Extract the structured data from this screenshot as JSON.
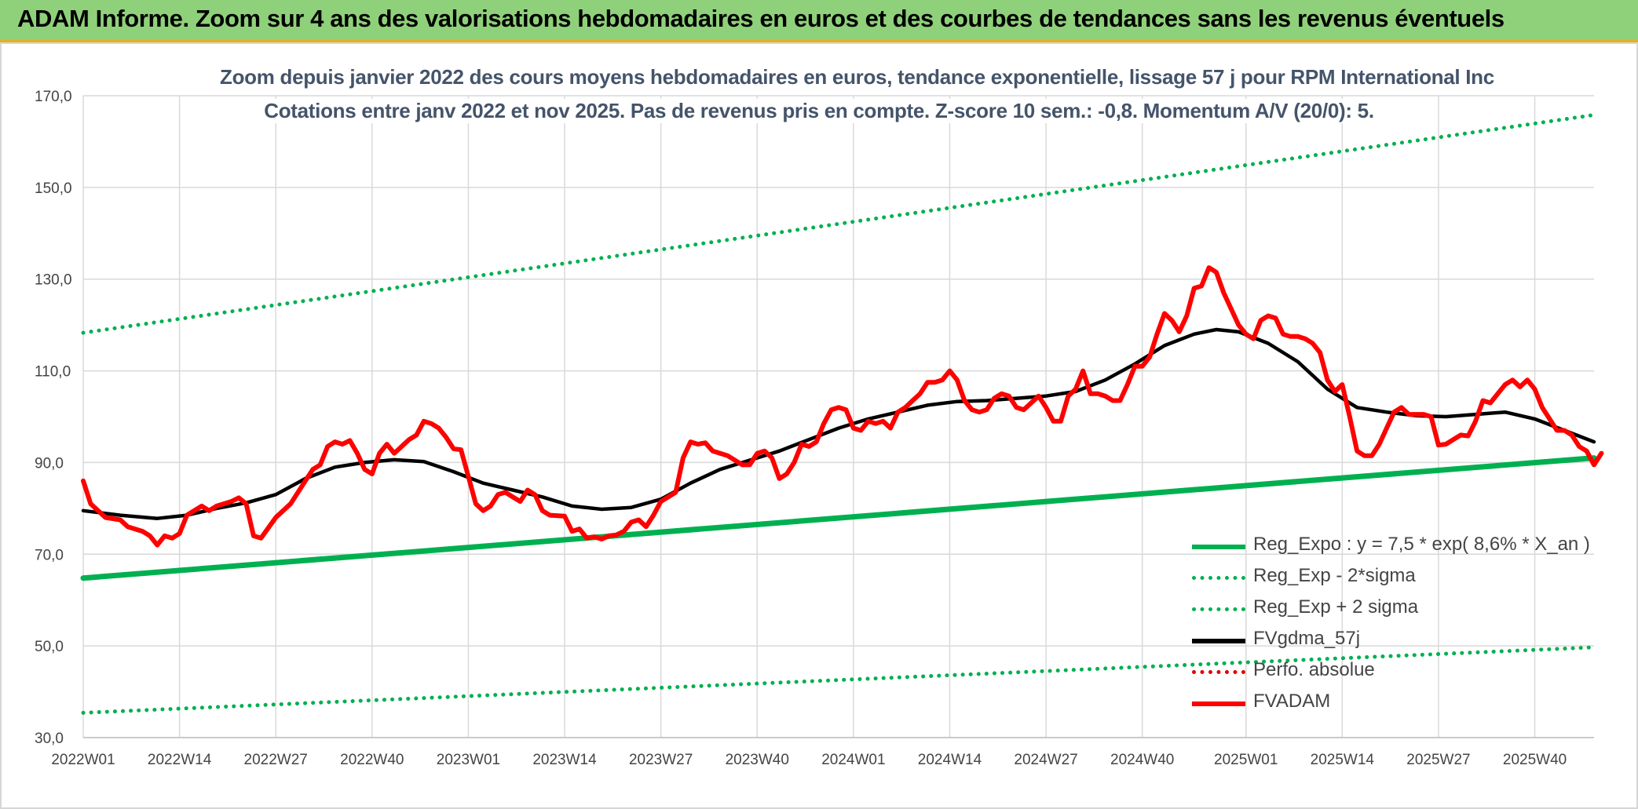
{
  "banner": {
    "title": "ADAM Informe. Zoom sur 4 ans des valorisations hebdomadaires en euros et des courbes de tendances sans les revenus éventuels"
  },
  "chart_data": {
    "type": "line",
    "title": "Zoom depuis janvier 2022 des cours moyens hebdomadaires en euros, tendance exponentielle, lissage 57 j pour RPM International Inc",
    "subtitle": "Cotations entre janv 2022 et nov 2025. Pas de revenus pris en compte. Z-score 10 sem.: -0,8. Momentum A/V (20/0): 5.",
    "xlabel": "",
    "ylabel": "",
    "ylim": [
      30,
      170
    ],
    "y_ticks": [
      "170,0",
      "150,0",
      "130,0",
      "110,0",
      "90,0",
      "70,0",
      "50,0",
      "30,0"
    ],
    "x_range": [
      0,
      204
    ],
    "x_ticks": [
      {
        "x": 0,
        "label": "2022W01"
      },
      {
        "x": 13,
        "label": "2022W14"
      },
      {
        "x": 26,
        "label": "2022W27"
      },
      {
        "x": 39,
        "label": "2022W40"
      },
      {
        "x": 52,
        "label": "2023W01"
      },
      {
        "x": 65,
        "label": "2023W14"
      },
      {
        "x": 78,
        "label": "2023W27"
      },
      {
        "x": 91,
        "label": "2023W40"
      },
      {
        "x": 104,
        "label": "2024W01"
      },
      {
        "x": 117,
        "label": "2024W14"
      },
      {
        "x": 130,
        "label": "2024W27"
      },
      {
        "x": 143,
        "label": "2024W40"
      },
      {
        "x": 157,
        "label": "2025W01"
      },
      {
        "x": 170,
        "label": "2025W14"
      },
      {
        "x": 183,
        "label": "2025W27"
      },
      {
        "x": 196,
        "label": "2025W40"
      }
    ],
    "grid": true,
    "legend_position": "bottom-right",
    "series": [
      {
        "name": "Reg_Expo : y = 7,5 * exp( 8,6% *  X_an )",
        "color": "#00b050",
        "style": "solid",
        "points": [
          [
            0,
            64.8
          ],
          [
            204,
            91.0
          ]
        ]
      },
      {
        "name": "Reg_Exp - 2*sigma",
        "color": "#00b050",
        "style": "dotted",
        "points": [
          [
            0,
            35.4
          ],
          [
            204,
            49.7
          ]
        ]
      },
      {
        "name": "Reg_Exp + 2 sigma",
        "color": "#00b050",
        "style": "dotted",
        "points": [
          [
            0,
            118.3
          ],
          [
            204,
            165.8
          ]
        ]
      },
      {
        "name": "FVgdma_57j",
        "color": "#000000",
        "style": "solid",
        "points": [
          [
            0,
            79.5
          ],
          [
            5,
            78.5
          ],
          [
            10,
            77.8
          ],
          [
            14,
            78.5
          ],
          [
            18,
            80.0
          ],
          [
            22,
            81.2
          ],
          [
            26,
            83.0
          ],
          [
            30,
            86.5
          ],
          [
            34,
            89.0
          ],
          [
            38,
            90.0
          ],
          [
            42,
            90.6
          ],
          [
            46,
            90.2
          ],
          [
            50,
            88.0
          ],
          [
            54,
            85.5
          ],
          [
            58,
            84.0
          ],
          [
            62,
            82.5
          ],
          [
            66,
            80.5
          ],
          [
            70,
            79.8
          ],
          [
            74,
            80.2
          ],
          [
            78,
            82.0
          ],
          [
            82,
            85.5
          ],
          [
            86,
            88.5
          ],
          [
            90,
            90.5
          ],
          [
            94,
            92.5
          ],
          [
            98,
            95.0
          ],
          [
            102,
            97.5
          ],
          [
            106,
            99.5
          ],
          [
            110,
            101.0
          ],
          [
            114,
            102.5
          ],
          [
            118,
            103.3
          ],
          [
            122,
            103.5
          ],
          [
            126,
            104.0
          ],
          [
            130,
            104.5
          ],
          [
            134,
            105.5
          ],
          [
            138,
            108.0
          ],
          [
            142,
            111.5
          ],
          [
            146,
            115.5
          ],
          [
            150,
            118.0
          ],
          [
            153,
            119.0
          ],
          [
            156,
            118.5
          ],
          [
            160,
            116.0
          ],
          [
            164,
            112.0
          ],
          [
            168,
            106.0
          ],
          [
            172,
            102.0
          ],
          [
            176,
            101.0
          ],
          [
            180,
            100.2
          ],
          [
            184,
            100.0
          ],
          [
            188,
            100.5
          ],
          [
            192,
            101.0
          ],
          [
            196,
            99.5
          ],
          [
            200,
            97.0
          ],
          [
            204,
            94.5
          ]
        ]
      },
      {
        "name": "Perfo. absolue",
        "color": "#e00000",
        "style": "dotted",
        "points": []
      },
      {
        "name": "FVADAM",
        "color": "#ff0000",
        "style": "solid",
        "points": [
          [
            0,
            86.0
          ],
          [
            1,
            81.0
          ],
          [
            3,
            78.0
          ],
          [
            5,
            77.5
          ],
          [
            6,
            76.0
          ],
          [
            8,
            75.0
          ],
          [
            9,
            74.0
          ],
          [
            10,
            72.0
          ],
          [
            11,
            74.0
          ],
          [
            12,
            73.5
          ],
          [
            13,
            74.5
          ],
          [
            14,
            78.5
          ],
          [
            16,
            80.5
          ],
          [
            17,
            79.5
          ],
          [
            18,
            80.5
          ],
          [
            20,
            81.5
          ],
          [
            21,
            82.3
          ],
          [
            22,
            81.0
          ],
          [
            23,
            74.0
          ],
          [
            24,
            73.5
          ],
          [
            26,
            78.0
          ],
          [
            28,
            81.0
          ],
          [
            30,
            86.0
          ],
          [
            31,
            88.5
          ],
          [
            32,
            89.5
          ],
          [
            33,
            93.5
          ],
          [
            34,
            94.5
          ],
          [
            35,
            94.0
          ],
          [
            36,
            94.8
          ],
          [
            37,
            92.0
          ],
          [
            38,
            88.5
          ],
          [
            39,
            87.5
          ],
          [
            40,
            92.0
          ],
          [
            41,
            94.0
          ],
          [
            42,
            92.0
          ],
          [
            43,
            93.5
          ],
          [
            44,
            95.0
          ],
          [
            45,
            96.0
          ],
          [
            46,
            99.0
          ],
          [
            47,
            98.5
          ],
          [
            48,
            97.5
          ],
          [
            49,
            95.5
          ],
          [
            50,
            93.0
          ],
          [
            51,
            92.8
          ],
          [
            52,
            87.0
          ],
          [
            53,
            81.0
          ],
          [
            54,
            79.5
          ],
          [
            55,
            80.5
          ],
          [
            56,
            83.0
          ],
          [
            57,
            83.5
          ],
          [
            58,
            82.5
          ],
          [
            59,
            81.5
          ],
          [
            60,
            84.0
          ],
          [
            61,
            83.0
          ],
          [
            62,
            79.5
          ],
          [
            63,
            78.5
          ],
          [
            65,
            78.3
          ],
          [
            66,
            75.0
          ],
          [
            67,
            75.5
          ],
          [
            68,
            73.5
          ],
          [
            69,
            73.8
          ],
          [
            70,
            73.3
          ],
          [
            71,
            74.0
          ],
          [
            72,
            74.2
          ],
          [
            73,
            75.0
          ],
          [
            74,
            77.0
          ],
          [
            75,
            77.5
          ],
          [
            76,
            76.0
          ],
          [
            77,
            78.5
          ],
          [
            78,
            81.5
          ],
          [
            79,
            82.5
          ],
          [
            80,
            83.5
          ],
          [
            81,
            91.0
          ],
          [
            82,
            94.5
          ],
          [
            83,
            94.0
          ],
          [
            84,
            94.3
          ],
          [
            85,
            92.5
          ],
          [
            86,
            92.0
          ],
          [
            87,
            91.5
          ],
          [
            88,
            90.5
          ],
          [
            89,
            89.5
          ],
          [
            90,
            89.5
          ],
          [
            91,
            92.0
          ],
          [
            92,
            92.5
          ],
          [
            93,
            91.0
          ],
          [
            94,
            86.5
          ],
          [
            95,
            87.5
          ],
          [
            96,
            90.0
          ],
          [
            97,
            94.0
          ],
          [
            98,
            93.5
          ],
          [
            99,
            94.5
          ],
          [
            100,
            98.5
          ],
          [
            101,
            101.5
          ],
          [
            102,
            102.0
          ],
          [
            103,
            101.5
          ],
          [
            104,
            97.5
          ],
          [
            105,
            97.0
          ],
          [
            106,
            99.0
          ],
          [
            107,
            98.5
          ],
          [
            108,
            99.0
          ],
          [
            109,
            97.5
          ],
          [
            110,
            101.0
          ],
          [
            111,
            102.0
          ],
          [
            112,
            103.5
          ],
          [
            113,
            105.0
          ],
          [
            114,
            107.5
          ],
          [
            115,
            107.5
          ],
          [
            116,
            108.0
          ],
          [
            117,
            110.0
          ],
          [
            118,
            108.0
          ],
          [
            119,
            103.5
          ],
          [
            120,
            101.5
          ],
          [
            121,
            101.0
          ],
          [
            122,
            101.5
          ],
          [
            123,
            104.0
          ],
          [
            124,
            105.0
          ],
          [
            125,
            104.5
          ],
          [
            126,
            102.0
          ],
          [
            127,
            101.5
          ],
          [
            128,
            103.0
          ],
          [
            129,
            104.5
          ],
          [
            130,
            102.0
          ],
          [
            131,
            99.0
          ],
          [
            132,
            99.0
          ],
          [
            133,
            104.5
          ],
          [
            134,
            106.0
          ],
          [
            135,
            110.0
          ],
          [
            136,
            105.0
          ],
          [
            137,
            105.0
          ],
          [
            138,
            104.5
          ],
          [
            139,
            103.5
          ],
          [
            140,
            103.5
          ],
          [
            141,
            107.0
          ],
          [
            142,
            111.0
          ],
          [
            143,
            111.0
          ],
          [
            144,
            113.0
          ],
          [
            145,
            118.0
          ],
          [
            146,
            122.5
          ],
          [
            147,
            121.0
          ],
          [
            148,
            118.5
          ],
          [
            149,
            122.0
          ],
          [
            150,
            128.0
          ],
          [
            151,
            128.5
          ],
          [
            152,
            132.5
          ],
          [
            153,
            131.5
          ],
          [
            154,
            127.0
          ],
          [
            155,
            123.5
          ],
          [
            156,
            120.0
          ],
          [
            157,
            118.0
          ],
          [
            158,
            117.0
          ],
          [
            159,
            121.0
          ],
          [
            160,
            122.0
          ],
          [
            161,
            121.5
          ],
          [
            162,
            118.0
          ],
          [
            163,
            117.5
          ],
          [
            164,
            117.5
          ],
          [
            165,
            117.0
          ],
          [
            166,
            116.0
          ],
          [
            167,
            114.0
          ],
          [
            168,
            108.0
          ],
          [
            169,
            105.5
          ],
          [
            170,
            107.0
          ],
          [
            171,
            100.0
          ],
          [
            172,
            92.5
          ],
          [
            173,
            91.5
          ],
          [
            174,
            91.5
          ],
          [
            175,
            94.0
          ],
          [
            176,
            97.5
          ],
          [
            177,
            101.0
          ],
          [
            178,
            102.0
          ],
          [
            179,
            100.5
          ],
          [
            180,
            100.5
          ],
          [
            181,
            100.5
          ],
          [
            182,
            100.0
          ],
          [
            183,
            93.8
          ],
          [
            184,
            94.0
          ],
          [
            185,
            95.0
          ],
          [
            186,
            96.0
          ],
          [
            187,
            95.8
          ],
          [
            188,
            99.0
          ],
          [
            189,
            103.5
          ],
          [
            190,
            103.0
          ],
          [
            191,
            105.0
          ],
          [
            192,
            107.0
          ],
          [
            193,
            108.0
          ],
          [
            194,
            106.5
          ],
          [
            195,
            108.0
          ],
          [
            196,
            106.0
          ],
          [
            197,
            102.0
          ],
          [
            198,
            99.5
          ],
          [
            199,
            97.0
          ],
          [
            200,
            97.0
          ],
          [
            201,
            96.0
          ],
          [
            202,
            93.5
          ],
          [
            203,
            92.5
          ],
          [
            204,
            89.5
          ],
          [
            205,
            92.0
          ]
        ]
      }
    ]
  }
}
